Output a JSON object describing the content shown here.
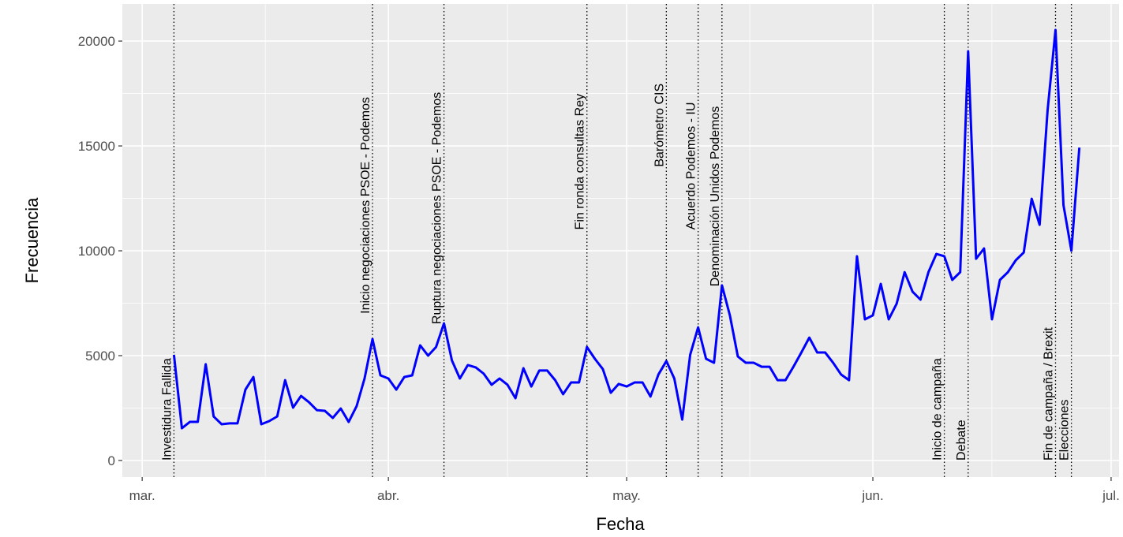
{
  "chart_data": {
    "type": "line",
    "xlabel": "Fecha",
    "ylabel": "Frecuencia",
    "color": "#0000ff",
    "grid": true,
    "xlim": [
      -2.5,
      123
    ],
    "ylim": [
      -790,
      21770
    ],
    "xticks": [
      {
        "value": 0,
        "label": "mar."
      },
      {
        "value": 31,
        "label": "abr."
      },
      {
        "value": 61,
        "label": "may."
      },
      {
        "value": 92,
        "label": "jun."
      },
      {
        "value": 122,
        "label": "jul."
      }
    ],
    "yticks": [
      0,
      5000,
      10000,
      15000,
      20000
    ],
    "x": [
      4,
      5,
      6,
      7,
      8,
      9,
      10,
      11,
      12,
      13,
      14,
      15,
      16,
      17,
      18,
      19,
      20,
      21,
      22,
      23,
      24,
      25,
      26,
      27,
      28,
      29,
      30,
      31,
      32,
      33,
      34,
      35,
      36,
      37,
      38,
      39,
      40,
      41,
      42,
      43,
      44,
      45,
      46,
      47,
      48,
      49,
      50,
      51,
      52,
      53,
      54,
      55,
      56,
      57,
      58,
      59,
      60,
      61,
      62,
      63,
      64,
      65,
      66,
      67,
      68,
      69,
      70,
      71,
      72,
      73,
      74,
      75,
      76,
      77,
      78,
      79,
      80,
      81,
      82,
      83,
      84,
      85,
      86,
      87,
      88,
      89,
      90,
      91,
      92,
      93,
      94,
      95,
      96,
      97,
      98,
      99,
      100,
      101,
      102,
      103,
      104,
      105,
      106,
      107,
      108,
      109,
      110,
      111,
      112,
      113,
      114,
      115,
      116,
      117,
      118
    ],
    "values": [
      5040,
      1540,
      1840,
      1840,
      4590,
      2100,
      1730,
      1770,
      1770,
      3380,
      3980,
      1730,
      1880,
      2100,
      3830,
      2520,
      3080,
      2780,
      2400,
      2370,
      2030,
      2480,
      1840,
      2590,
      3910,
      5790,
      4060,
      3910,
      3380,
      3980,
      4060,
      5490,
      5000,
      5410,
      6540,
      4770,
      3910,
      4550,
      4440,
      4140,
      3610,
      3910,
      3610,
      2970,
      4400,
      3530,
      4290,
      4290,
      3830,
      3160,
      3720,
      3720,
      5410,
      4850,
      4360,
      3230,
      3650,
      3530,
      3720,
      3720,
      3050,
      4100,
      4740,
      3910,
      1950,
      5040,
      6350,
      4850,
      4660,
      8350,
      6920,
      4960,
      4660,
      4660,
      4470,
      4470,
      3830,
      3830,
      4470,
      5150,
      5860,
      5150,
      5150,
      4660,
      4100,
      3830,
      9740,
      6730,
      6920,
      8420,
      6730,
      7480,
      8980,
      8050,
      7670,
      8980,
      9850,
      9740,
      8610,
      8980,
      19510,
      9620,
      10110,
      6730,
      8610,
      8980,
      9550,
      9920,
      12480,
      11240,
      16690,
      20530,
      12180,
      10000,
      14920
    ],
    "annotations": [
      {
        "x": 4,
        "y": 0,
        "label": "Investidura Fallida"
      },
      {
        "x": 29,
        "y": 7000,
        "label": "Inicio negociaciones PSOE - Podemos"
      },
      {
        "x": 38,
        "y": 6500,
        "label": "Ruptura negociaciones PSOE - Podemos"
      },
      {
        "x": 56,
        "y": 11000,
        "label": "Fin ronda consultas Rey"
      },
      {
        "x": 66,
        "y": 14000,
        "label": "Barómetro CIS"
      },
      {
        "x": 70,
        "y": 11000,
        "label": "Acuerdo Podemos - IU"
      },
      {
        "x": 73,
        "y": 8300,
        "label": "Denominación Unidos Podemos"
      },
      {
        "x": 101,
        "y": 0,
        "label": "Inicio de campaña"
      },
      {
        "x": 104,
        "y": 0,
        "label": "Debate"
      },
      {
        "x": 115,
        "y": 0,
        "label": "Fin de campaña / Brexit"
      },
      {
        "x": 117,
        "y": 0,
        "label": "Elecciones"
      }
    ]
  }
}
